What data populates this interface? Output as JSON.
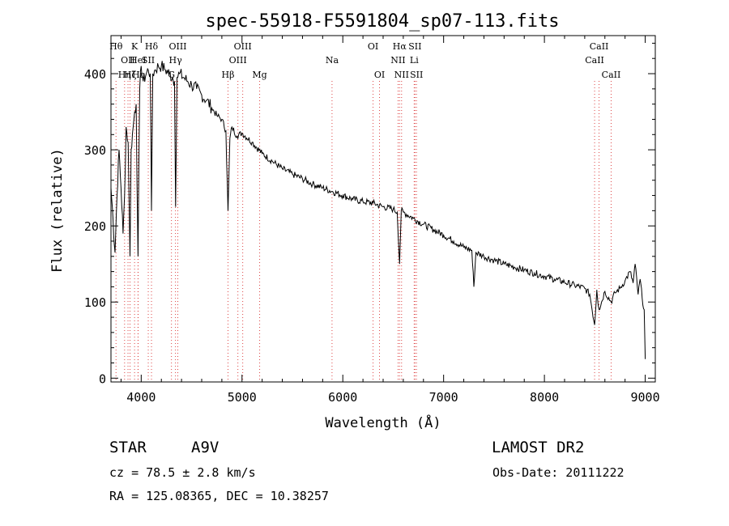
{
  "chart_data": {
    "type": "line",
    "title": "spec-55918-F5591804_sp07-113.fits",
    "xlabel": "Wavelength (Å)",
    "ylabel": "Flux (relative)",
    "xlim": [
      3700,
      9100
    ],
    "ylim": [
      -5,
      450
    ],
    "xticks": [
      4000,
      5000,
      6000,
      7000,
      8000,
      9000
    ],
    "yticks": [
      0,
      100,
      200,
      300,
      400
    ],
    "grid": false,
    "series": [
      {
        "x": [
          3700,
          3720,
          3740,
          3760,
          3780,
          3800,
          3820,
          3835,
          3850,
          3870,
          3889,
          3900,
          3920,
          3935,
          3950,
          3968,
          3985,
          4000,
          4020,
          4050,
          4070,
          4090,
          4102,
          4115,
          4140,
          4170,
          4200,
          4240,
          4280,
          4310,
          4330,
          4341,
          4355,
          4380,
          4420,
          4460,
          4500,
          4550,
          4600,
          4650,
          4700,
          4750,
          4800,
          4840,
          4861,
          4880,
          4900,
          4950,
          5000,
          5100,
          5200,
          5300,
          5400,
          5500,
          5600,
          5700,
          5800,
          5900,
          6000,
          6100,
          6200,
          6300,
          6400,
          6500,
          6540,
          6563,
          6580,
          6600,
          6700,
          6800,
          6900,
          7000,
          7100,
          7200,
          7280,
          7300,
          7320,
          7400,
          7500,
          7600,
          7700,
          7800,
          7900,
          8000,
          8100,
          8200,
          8300,
          8400,
          8450,
          8498,
          8520,
          8542,
          8600,
          8662,
          8700,
          8750,
          8800,
          8850,
          8880,
          8900,
          8930,
          8950,
          8970,
          8990,
          9000
        ],
        "y": [
          250,
          210,
          165,
          240,
          300,
          250,
          190,
          240,
          330,
          310,
          160,
          300,
          330,
          350,
          360,
          160,
          380,
          410,
          390,
          400,
          405,
          400,
          220,
          400,
          405,
          410,
          410,
          405,
          400,
          395,
          390,
          225,
          395,
          400,
          395,
          390,
          385,
          380,
          372,
          365,
          355,
          345,
          340,
          325,
          220,
          315,
          330,
          318,
          322,
          310,
          295,
          285,
          275,
          268,
          262,
          255,
          250,
          245,
          240,
          235,
          232,
          230,
          225,
          222,
          218,
          150,
          220,
          218,
          210,
          202,
          195,
          188,
          180,
          172,
          168,
          120,
          165,
          160,
          155,
          150,
          146,
          142,
          138,
          134,
          130,
          126,
          122,
          118,
          110,
          70,
          116,
          90,
          114,
          100,
          112,
          118,
          128,
          140,
          125,
          150,
          110,
          130,
          105,
          90,
          25
        ]
      }
    ]
  },
  "lines": [
    {
      "x": 3750,
      "label": "Hθ",
      "row": 0
    },
    {
      "x": 3835,
      "label": "Hη",
      "row": 2
    },
    {
      "x": 3869,
      "label": "OII",
      "row": 1
    },
    {
      "x": 3889,
      "label": "Hζ",
      "row": 2
    },
    {
      "x": 3934,
      "label": "K",
      "row": 0
    },
    {
      "x": 3968,
      "label": "HeI",
      "row": 1
    },
    {
      "x": 3970,
      "label": "Hε",
      "row": 2
    },
    {
      "x": 4102,
      "label": "Hδ",
      "row": 0
    },
    {
      "x": 4070,
      "label": "SII",
      "row": 1
    },
    {
      "x": 4300,
      "label": "G",
      "row": 2
    },
    {
      "x": 4340,
      "label": "Hγ",
      "row": 1
    },
    {
      "x": 4363,
      "label": "OIII",
      "row": 0
    },
    {
      "x": 4861,
      "label": "Hβ",
      "row": 2
    },
    {
      "x": 4959,
      "label": "OIII",
      "row": 1
    },
    {
      "x": 5007,
      "label": "OIII",
      "row": 0
    },
    {
      "x": 5175,
      "label": "Mg",
      "row": 2
    },
    {
      "x": 5893,
      "label": "Na",
      "row": 1
    },
    {
      "x": 6300,
      "label": "OI",
      "row": 0
    },
    {
      "x": 6364,
      "label": "OI",
      "row": 2
    },
    {
      "x": 6548,
      "label": "NII",
      "row": 1
    },
    {
      "x": 6563,
      "label": "Hα",
      "row": 0
    },
    {
      "x": 6583,
      "label": "NII",
      "row": 2
    },
    {
      "x": 6708,
      "label": "Li",
      "row": 1
    },
    {
      "x": 6716,
      "label": "SII",
      "row": 0
    },
    {
      "x": 6731,
      "label": "SII",
      "row": 2
    },
    {
      "x": 8498,
      "label": "CaII",
      "row": 1
    },
    {
      "x": 8542,
      "label": "CaII",
      "row": 0
    },
    {
      "x": 8662,
      "label": "CaII",
      "row": 2
    }
  ],
  "footer": {
    "class_label": "STAR",
    "subclass": "A9V",
    "survey": "LAMOST DR2",
    "cz": "cz = 78.5 ± 2.8 km/s",
    "obs_date": "Obs-Date: 20111222",
    "radec": "RA = 125.08365, DEC =  10.38257"
  }
}
